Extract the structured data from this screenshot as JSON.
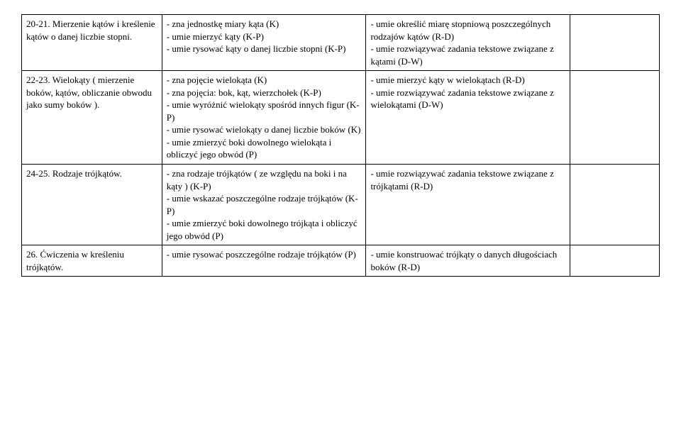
{
  "rows": [
    {
      "col1": "20-21. Mierzenie kątów i kreślenie kątów o danej liczbie stopni.",
      "col2": "- zna jednostkę miary kąta (K)\n- umie mierzyć kąty (K-P)\n- umie rysować kąty o danej liczbie stopni (K-P)",
      "col3": "- umie określić miarę stopniową poszczególnych rodzajów kątów (R-D)\n- umie rozwiązywać zadania tekstowe związane z kątami (D-W)",
      "col4": ""
    },
    {
      "col1": "22-23. Wielokąty ( mierzenie boków, kątów, obliczanie obwodu jako sumy boków ).",
      "col2": "- zna pojęcie wielokąta (K)\n- zna pojęcia: bok, kąt, wierzchołek (K-P)\n- umie wyróżnić wielokąty spośród innych figur (K-P)\n- umie rysować wielokąty o danej liczbie boków (K)\n- umie zmierzyć boki dowolnego wielokąta i obliczyć jego obwód (P)",
      "col3": "- umie mierzyć kąty w wielokątach (R-D)\n- umie rozwiązywać zadania tekstowe związane z wielokątami (D-W)",
      "col4": ""
    },
    {
      "col1": "24-25. Rodzaje trójkątów.",
      "col2": "- zna rodzaje trójkątów ( ze względu na boki i na kąty ) (K-P)\n- umie wskazać poszczególne rodzaje trójkątów (K-P)\n- umie zmierzyć boki dowolnego trójkąta i obliczyć jego obwód (P)",
      "col3": "- umie rozwiązywać zadania tekstowe związane z trójkątami (R-D)",
      "col4": ""
    },
    {
      "col1": "26. Ćwiczenia w kreśleniu trójkątów.",
      "col2": "- umie rysować poszczególne rodzaje trójkątów (P)",
      "col3": "- umie konstruować trójkąty o danych długościach boków (R-D)",
      "col4": ""
    }
  ]
}
